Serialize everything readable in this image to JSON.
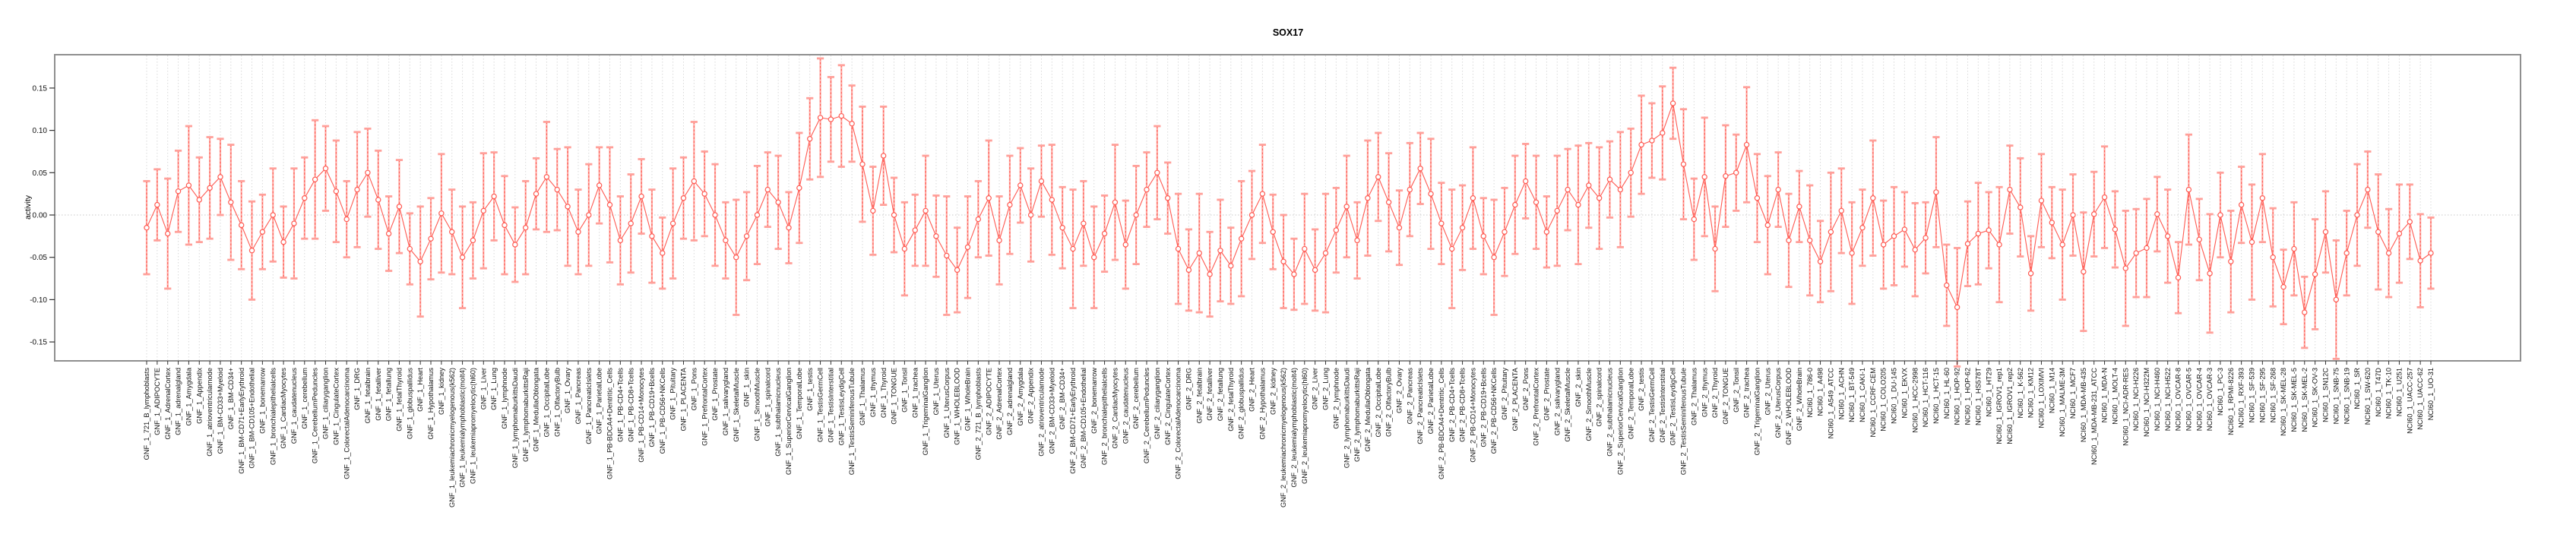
{
  "title": "SOX17",
  "chart_data": {
    "type": "line",
    "title": "SOX17",
    "xlabel": "",
    "ylabel": "activity",
    "ylim": [
      -0.172,
      0.189
    ],
    "yticks": [
      0.15,
      0.1,
      0.05,
      0.0,
      -0.05,
      -0.1,
      -0.15
    ],
    "grid": "vertical dotted line per category, dotted horizontal zero line",
    "legend_position": "none",
    "marker": "open-circle",
    "error_bars": "symmetric, dashed vertical stem with flat caps",
    "colors": {
      "series": "#ff5a52",
      "error_stem_fill": "#ffada7",
      "error_cap": "#ffa09a",
      "gridline": "#d9d9d9",
      "zero_line": "#c9c9c9",
      "frame": "#8f8f8f",
      "text": "#111111"
    },
    "categories": [
      "GNF_1_721_B_lymphoblasts",
      "GNF_1_ADIPOCYTE",
      "GNF_1_AdrenalCortex",
      "GNF_1_adrenalgland",
      "GNF_1_Amygdala",
      "GNF_1_Appendix",
      "GNF_1_atrioventricularnode",
      "GNF_1_BM-CD33+Myeloid",
      "GNF_1_BM-CD34+",
      "GNF_1_BM-CD71+EarlyErythroid",
      "GNF_1_BM-CD105+Endothelial",
      "GNF_1_bonemarrow",
      "GNF_1_bronchialepithelialcells",
      "GNF_1_CardiacMyocytes",
      "GNF_1_caudatenucleus",
      "GNF_1_cerebellum",
      "GNF_1_CerebellumPeduncles",
      "GNF_1_ciliaryganglion",
      "GNF_1_CingulateCortex",
      "GNF_1_ColorectalAdenocarcinoma",
      "GNF_1_DRG",
      "GNF_1_fetalbrain",
      "GNF_1_fetalliver",
      "GNF_1_fetallung",
      "GNF_1_fetalThyroid",
      "GNF_1_globuspallidus",
      "GNF_1_Heart",
      "GNF_1_Hypothalamus",
      "GNF_1_kidney",
      "GNF_1_leukemiachronicmyelogenous(k562)",
      "GNF_1_leukemialymphoblastic(molt4)",
      "GNF_1_leukemiapromyelocytic(hl60)",
      "GNF_1_Liver",
      "GNF_1_Lung",
      "GNF_1_lymphnode",
      "GNF_1_lymphomaburkittsDaudi",
      "GNF_1_lymphomaburkittsRaji",
      "GNF_1_MedullaOblongata",
      "GNF_1_OccipitalLobe",
      "GNF_1_OlfactoryBulb",
      "GNF_1_Ovary",
      "GNF_1_Pancreas",
      "GNF_1_PancreaticIslets",
      "GNF_1_ParietalLobe",
      "GNF_1_PB-BDCA4+Dentritic_Cells",
      "GNF_1_PB-CD4+Tcells",
      "GNF_1_PB-CD8+Tcells",
      "GNF_1_PB-CD14+Monocytes",
      "GNF_1_PB-CD19+Bcells",
      "GNF_1_PB-CD56+NKCells",
      "GNF_1_Pituitary",
      "GNF_1_PLACENTA",
      "GNF_1_Pons",
      "GNF_1_PrefrontalCortex",
      "GNF_1_Prostate",
      "GNF_1_salivarygland",
      "GNF_1_SkeletalMuscle",
      "GNF_1_skin",
      "GNF_1_SmoothMuscle",
      "GNF_1_spinalcord",
      "GNF_1_subthalamicnucleus",
      "GNF_1_SuperiorCervicalGanglion",
      "GNF_1_TemporalLobe",
      "GNF_1_testis",
      "GNF_1_TestisGermCell",
      "GNF_1_TestisInterstitial",
      "GNF_1_TestisLeydigCell",
      "GNF_1_TestisSeminiferousTubule",
      "GNF_1_Thalamus",
      "GNF_1_thymus",
      "GNF_1_Thyroid",
      "GNF_1_TONGUE",
      "GNF_1_Tonsil",
      "GNF_1_trachea",
      "GNF_1_TrigeminalGanglion",
      "GNF_1_Uterus",
      "GNF_1_UterusCorpus",
      "GNF_1_WHOLEBLOOD",
      "GNF_1_WholeBrain",
      "GNF_2_721_B_lymphoblasts",
      "GNF_2_ADIPOCYTE",
      "GNF_2_AdrenalCortex",
      "GNF_2_adrenalgland",
      "GNF_2_Amygdala",
      "GNF_2_Appendix",
      "GNF_2_atrioventricularnode",
      "GNF_2_BM-CD33+Myeloid",
      "GNF_2_BM-CD34+",
      "GNF_2_BM-CD71+EarlyErythroid",
      "GNF_2_BM-CD105+Endothelial",
      "GNF_2_bonemarrow",
      "GNF_2_bronchialepithelialcells",
      "GNF_2_CardiacMyocytes",
      "GNF_2_caudatenucleus",
      "GNF_2_cerebellum",
      "GNF_2_CerebellumPeduncles",
      "GNF_2_ciliaryganglion",
      "GNF_2_CingulateCortex",
      "GNF_2_ColorectalAdenocarcinoma",
      "GNF_2_DRG",
      "GNF_2_fetalbrain",
      "GNF_2_fetalliver",
      "GNF_2_fetallung",
      "GNF_2_fetalThyroid",
      "GNF_2_globuspallidus",
      "GNF_2_Heart",
      "GNF_2_Hypothalamus",
      "GNF_2_kidney",
      "GNF_2_leukemiachronicmyelogenous(k562)",
      "GNF_2_leukemialymphoblastic(molt4)",
      "GNF_2_leukemiapromyelocytic(hl60)",
      "GNF_2_Liver",
      "GNF_2_Lung",
      "GNF_2_lymphnode",
      "GNF_2_lymphomaburkittsDaudi",
      "GNF_2_lymphomaburkittsRaji",
      "GNF_2_MedullaOblongata",
      "GNF_2_OccipitalLobe",
      "GNF_2_OlfactoryBulb",
      "GNF_2_Ovary",
      "GNF_2_Pancreas",
      "GNF_2_PancreaticIslets",
      "GNF_2_ParietalLobe",
      "GNF_2_PB-BDCA4+Dentritic_Cells",
      "GNF_2_PB-CD4+Tcells",
      "GNF_2_PB-CD8+Tcells",
      "GNF_2_PB-CD14+Monocytes",
      "GNF_2_PB-CD19+Bcells",
      "GNF_2_PB-CD56+NKCells",
      "GNF_2_Pituitary",
      "GNF_2_PLACENTA",
      "GNF_2_Pons",
      "GNF_2_PrefrontalCortex",
      "GNF_2_Prostate",
      "GNF_2_salivarygland",
      "GNF_2_SkeletalMuscle",
      "GNF_2_skin",
      "GNF_2_SmoothMuscle",
      "GNF_2_spinalcord",
      "GNF_2_subthalamicnucleus",
      "GNF_2_SuperiorCervicalGanglion",
      "GNF_2_TemporalLobe",
      "GNF_2_testis",
      "GNF_2_TestisGermCell",
      "GNF_2_TestisInterstitial",
      "GNF_2_TestisLeydigCell",
      "GNF_2_TestisSeminiferousTubule",
      "GNF_2_Thalamus",
      "GNF_2_thymus",
      "GNF_2_Thyroid",
      "GNF_2_TONGUE",
      "GNF_2_Tonsil",
      "GNF_2_trachea",
      "GNF_2_TrigeminalGanglion",
      "GNF_2_Uterus",
      "GNF_2_UterusCorpus",
      "GNF_2_WHOLEBLOOD",
      "GNF_2_WholeBrain",
      "NCI60_1_786-0",
      "NCI60_1_A498",
      "NCI60_1_A549_ATCC",
      "NCI60_1_ACHN",
      "NCI60_1_BT-549",
      "NCI60_1_CAKI-1",
      "NCI60_1_CCRF-CEM",
      "NCI60_1_COLO205",
      "NCI60_1_DU-145",
      "NCI60_1_EKVX",
      "NCI60_1_HCC-2998",
      "NCI60_1_HCT-116",
      "NCI60_1_HCT-15",
      "NCI60_1_HL-60",
      "NCI60_1_HOP-92",
      "NCI60_1_HOP-62",
      "NCI60_1_HS578T",
      "NCI60_1_HT29",
      "NCI60_1_IGROV1_rep1",
      "NCI60_1_IGROV1_rep2",
      "NCI60_1_K-562",
      "NCI60_1_KM12",
      "NCI60_1_LOXIMVI",
      "NCI60_1_M14",
      "NCI60_1_MALME-3M",
      "NCI60_1_MCF7",
      "NCI60_1_MDA-MB-435",
      "NCI60_1_MDA-MB-231_ATCC",
      "NCI60_1_MDA-N",
      "NCI60_1_MOLT-4",
      "NCI60_1_NCI-ADR-RES",
      "NCI60_1_NCI-H226",
      "NCI60_1_NCI-H322M",
      "NCI60_1_NCI-H460",
      "NCI60_1_NCI-H522",
      "NCI60_1_OVCAR-8",
      "NCI60_1_OVCAR-5",
      "NCI60_1_OVCAR-4",
      "NCI60_1_OVCAR-3",
      "NCI60_1_PC-3",
      "NCI60_1_RPMI-8226",
      "NCI60_1_RXF-393",
      "NCI60_1_SF-539",
      "NCI60_1_SF-295",
      "NCI60_1_SF-268",
      "NCI60_1_SK-MEL-28",
      "NCI60_1_SK-MEL-5",
      "NCI60_1_SK-MEL-2",
      "NCI60_1_SK-OV-3",
      "NCI60_1_SN12C",
      "NCI60_1_SNB-75",
      "NCI60_1_SNB-19",
      "NCI60_1_SR",
      "NCI60_1_SW-620",
      "NCI60_1_T47D",
      "NCI60_1_TK-10",
      "NCI60_1_U251",
      "NCI60_1_UACC-257",
      "NCI60_1_UACC-62",
      "NCI60_1_UO-31"
    ],
    "series": [
      {
        "name": "activity",
        "values": [
          -0.015,
          0.012,
          -0.022,
          0.028,
          0.035,
          0.018,
          0.032,
          0.045,
          0.015,
          -0.012,
          -0.042,
          -0.02,
          0.0,
          -0.032,
          -0.01,
          0.02,
          0.042,
          0.055,
          0.028,
          -0.005,
          0.03,
          0.05,
          0.018,
          -0.022,
          0.01,
          -0.04,
          -0.055,
          -0.028,
          0.002,
          -0.02,
          -0.05,
          -0.03,
          0.005,
          0.022,
          -0.012,
          -0.035,
          -0.015,
          0.025,
          0.045,
          0.03,
          0.01,
          -0.02,
          0.0,
          0.035,
          0.012,
          -0.03,
          -0.01,
          0.022,
          -0.025,
          -0.045,
          -0.01,
          0.02,
          0.04,
          0.025,
          0.0,
          -0.03,
          -0.05,
          -0.025,
          0.0,
          0.03,
          0.015,
          -0.015,
          0.032,
          0.09,
          0.115,
          0.113,
          0.117,
          0.108,
          0.06,
          0.005,
          0.07,
          0.0,
          -0.04,
          -0.018,
          0.005,
          -0.025,
          -0.048,
          -0.065,
          -0.038,
          -0.005,
          0.02,
          -0.03,
          0.012,
          0.035,
          0.0,
          0.04,
          0.018,
          -0.015,
          -0.04,
          -0.01,
          -0.05,
          -0.022,
          0.015,
          -0.035,
          0.0,
          0.03,
          0.05,
          0.02,
          -0.04,
          -0.065,
          -0.045,
          -0.07,
          -0.042,
          -0.06,
          -0.028,
          0.0,
          0.025,
          -0.02,
          -0.055,
          -0.07,
          -0.04,
          -0.065,
          -0.045,
          -0.018,
          0.01,
          -0.03,
          0.02,
          0.045,
          0.015,
          -0.015,
          0.03,
          0.055,
          0.025,
          -0.01,
          -0.04,
          -0.015,
          0.02,
          -0.025,
          -0.05,
          -0.02,
          0.012,
          0.04,
          0.015,
          -0.02,
          0.005,
          0.03,
          0.012,
          0.035,
          0.02,
          0.042,
          0.03,
          0.05,
          0.083,
          0.088,
          0.097,
          0.132,
          0.06,
          -0.005,
          0.045,
          -0.04,
          0.046,
          0.05,
          0.083,
          0.02,
          -0.012,
          0.03,
          -0.03,
          0.01,
          -0.03,
          -0.055,
          -0.02,
          0.005,
          -0.045,
          -0.015,
          0.02,
          -0.035,
          -0.025,
          -0.017,
          -0.041,
          -0.027,
          0.027,
          -0.083,
          -0.109,
          -0.034,
          -0.022,
          -0.018,
          -0.035,
          0.03,
          0.009,
          -0.069,
          0.017,
          -0.009,
          -0.035,
          0.0,
          -0.067,
          0.001,
          0.021,
          -0.017,
          -0.063,
          -0.045,
          -0.039,
          0.001,
          -0.025,
          -0.074,
          0.03,
          -0.029,
          -0.069,
          0.0,
          -0.055,
          0.012,
          -0.032,
          0.02,
          -0.05,
          -0.085,
          -0.04,
          -0.115,
          -0.07,
          -0.02,
          -0.1,
          -0.045,
          0.0,
          0.03,
          -0.02,
          -0.045,
          -0.022,
          -0.008,
          -0.054,
          -0.045
        ],
        "errors": [
          0.055,
          0.042,
          0.065,
          0.048,
          0.07,
          0.05,
          0.06,
          0.045,
          0.068,
          0.052,
          0.058,
          0.044,
          0.055,
          0.042,
          0.065,
          0.048,
          0.07,
          0.05,
          0.06,
          0.045,
          0.068,
          0.052,
          0.058,
          0.044,
          0.055,
          0.042,
          0.065,
          0.048,
          0.07,
          0.05,
          0.06,
          0.045,
          0.068,
          0.052,
          0.058,
          0.044,
          0.055,
          0.042,
          0.065,
          0.048,
          0.07,
          0.05,
          0.06,
          0.045,
          0.068,
          0.052,
          0.058,
          0.044,
          0.055,
          0.042,
          0.065,
          0.048,
          0.07,
          0.05,
          0.06,
          0.045,
          0.068,
          0.052,
          0.058,
          0.044,
          0.055,
          0.042,
          0.065,
          0.048,
          0.07,
          0.05,
          0.06,
          0.045,
          0.068,
          0.052,
          0.058,
          0.044,
          0.055,
          0.042,
          0.065,
          0.048,
          0.07,
          0.05,
          0.06,
          0.045,
          0.068,
          0.052,
          0.058,
          0.044,
          0.055,
          0.042,
          0.065,
          0.048,
          0.07,
          0.05,
          0.06,
          0.045,
          0.068,
          0.052,
          0.058,
          0.044,
          0.055,
          0.042,
          0.065,
          0.048,
          0.07,
          0.05,
          0.06,
          0.045,
          0.068,
          0.052,
          0.058,
          0.044,
          0.055,
          0.042,
          0.065,
          0.048,
          0.07,
          0.05,
          0.06,
          0.045,
          0.068,
          0.052,
          0.058,
          0.044,
          0.055,
          0.042,
          0.065,
          0.048,
          0.07,
          0.05,
          0.06,
          0.045,
          0.068,
          0.052,
          0.058,
          0.044,
          0.055,
          0.042,
          0.065,
          0.048,
          0.07,
          0.05,
          0.06,
          0.045,
          0.068,
          0.052,
          0.058,
          0.044,
          0.055,
          0.042,
          0.065,
          0.048,
          0.07,
          0.05,
          0.06,
          0.045,
          0.068,
          0.052,
          0.058,
          0.044,
          0.055,
          0.042,
          0.065,
          0.048,
          0.07,
          0.05,
          0.06,
          0.045,
          0.068,
          0.052,
          0.058,
          0.044,
          0.055,
          0.042,
          0.065,
          0.048,
          0.07,
          0.05,
          0.06,
          0.045,
          0.068,
          0.052,
          0.058,
          0.044,
          0.055,
          0.042,
          0.065,
          0.048,
          0.07,
          0.05,
          0.06,
          0.045,
          0.068,
          0.052,
          0.058,
          0.044,
          0.055,
          0.042,
          0.065,
          0.048,
          0.07,
          0.05,
          0.06,
          0.045,
          0.068,
          0.052,
          0.058,
          0.044,
          0.055,
          0.042,
          0.065,
          0.048,
          0.07,
          0.05,
          0.06,
          0.045,
          0.068,
          0.052,
          0.058,
          0.044,
          0.055,
          0.042
        ]
      }
    ]
  }
}
